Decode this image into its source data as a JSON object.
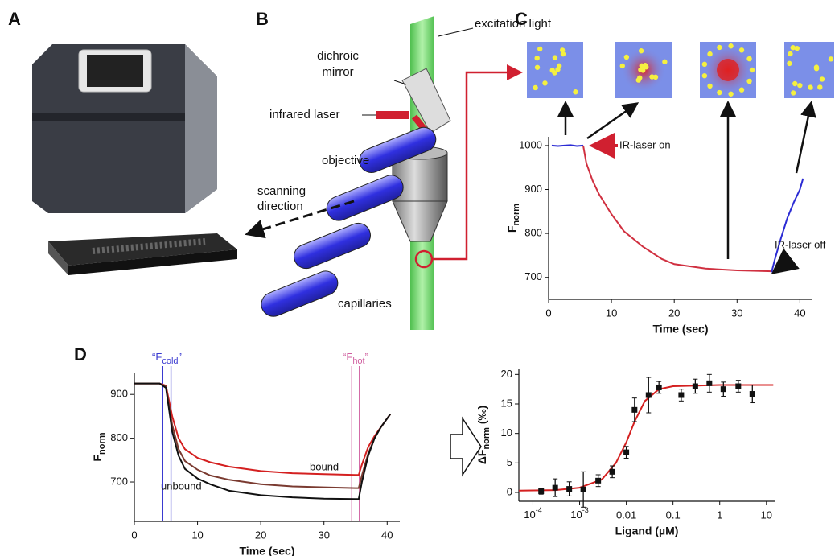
{
  "panels": [
    "A",
    "B",
    "C",
    "D"
  ],
  "diagram": {
    "excitation": "excitation light",
    "mirror": [
      "dichroic",
      "mirror"
    ],
    "laser": "infrared laser",
    "objective": "objective",
    "scanning": [
      "scanning",
      "direction"
    ],
    "capillaries": "capillaries"
  },
  "chart_data": [
    {
      "type": "line",
      "xlabel": "Time (sec)",
      "ylabel": "F",
      "ylabel_sub": "norm",
      "xlim": [
        0,
        42
      ],
      "xticks": [
        0,
        10,
        20,
        30,
        40
      ],
      "ylim": [
        650,
        1020
      ],
      "yticks": [
        700,
        800,
        900,
        1000
      ],
      "series": [
        {
          "color": "#2b2bd4",
          "x": [
            0.5,
            1.5,
            2.5,
            3.5,
            4.5,
            5.5
          ],
          "values": [
            1000,
            999,
            1000,
            1001,
            999,
            1000
          ]
        },
        {
          "color": "#d03040",
          "x": [
            5.5,
            6,
            7,
            8,
            10,
            12,
            15,
            18,
            20,
            25,
            30,
            35.5
          ],
          "values": [
            1000,
            960,
            920,
            890,
            844,
            805,
            770,
            742,
            730,
            720,
            716,
            714
          ]
        },
        {
          "color": "#2b2bd4",
          "x": [
            35.5,
            36,
            37,
            38,
            39,
            40,
            40.5
          ],
          "values": [
            712,
            740,
            790,
            835,
            870,
            900,
            925
          ]
        }
      ],
      "annotations": [
        "IR-laser on",
        "IR-laser off"
      ]
    },
    {
      "type": "line",
      "xlabel": "Time (sec)",
      "ylabel": "F",
      "ylabel_sub": "norm",
      "xlim": [
        0,
        42
      ],
      "xticks": [
        0,
        10,
        20,
        30,
        40
      ],
      "ylim": [
        610,
        950
      ],
      "yticks": [
        700,
        800,
        900
      ],
      "series": [
        {
          "name": "bound",
          "color": "#d42020",
          "x": [
            0,
            2,
            4,
            5,
            6,
            7,
            8,
            10,
            12,
            15,
            20,
            25,
            30,
            35,
            35.5,
            36,
            37,
            38,
            39,
            40,
            40.5
          ],
          "values": [
            925,
            925,
            925,
            920,
            850,
            800,
            775,
            755,
            745,
            735,
            725,
            720,
            718,
            716,
            716,
            740,
            780,
            805,
            825,
            845,
            855
          ]
        },
        {
          "color": "#7a3a30",
          "x": [
            0,
            2,
            4,
            5,
            6,
            7,
            8,
            10,
            12,
            15,
            20,
            25,
            30,
            35,
            35.5,
            36,
            37,
            38,
            39,
            40,
            40.5
          ],
          "values": [
            925,
            925,
            925,
            918,
            830,
            775,
            748,
            728,
            715,
            705,
            695,
            690,
            688,
            686,
            686,
            715,
            765,
            800,
            825,
            845,
            855
          ]
        },
        {
          "name": "unbound",
          "color": "#111111",
          "x": [
            0,
            2,
            4,
            5,
            6,
            7,
            8,
            10,
            12,
            15,
            20,
            25,
            30,
            35,
            35.5,
            36,
            37,
            38,
            39,
            40,
            40.5
          ],
          "values": [
            925,
            925,
            925,
            915,
            815,
            760,
            730,
            708,
            695,
            680,
            670,
            665,
            662,
            661,
            661,
            700,
            760,
            800,
            825,
            845,
            855
          ]
        }
      ],
      "markers": [
        {
          "label": "“F",
          "sub": "cold",
          "close": "”",
          "color": "#3a3ad0",
          "x": [
            4.5,
            5.8
          ]
        },
        {
          "label": "“F",
          "sub": "hot",
          "close": "”",
          "color": "#d060a0",
          "x": [
            34.4,
            35.6
          ]
        }
      ]
    },
    {
      "type": "scatter",
      "xscale": "log",
      "xlabel": "Ligand (µM)",
      "ylabel": "ΔF",
      "ylabel_sub": "norm",
      "ylabel_after": " (‰)",
      "xlim": [
        5e-05,
        15
      ],
      "xticks": [
        {
          "value": 0.0001,
          "label": "10",
          "exponent": "-4"
        },
        {
          "value": 0.001,
          "label": "10",
          "exponent": "-3"
        },
        0.01,
        0.1,
        1,
        10
      ],
      "ylim": [
        -1.5,
        21
      ],
      "yticks": [
        0,
        5,
        10,
        15,
        20
      ],
      "series": [
        {
          "color": "#111111",
          "x": [
            0.00015,
            0.0003,
            0.0006,
            0.0012,
            0.0025,
            0.005,
            0.01,
            0.015,
            0.03,
            0.05,
            0.15,
            0.3,
            0.6,
            1.2,
            2.5,
            5
          ],
          "values": [
            0.2,
            0.8,
            0.6,
            0.5,
            2,
            3.5,
            6.8,
            14,
            16.5,
            17.8,
            16.5,
            18,
            18.5,
            17.5,
            18,
            16.7
          ],
          "errors": [
            0.5,
            1.5,
            1.2,
            3,
            1,
            1,
            1,
            2,
            3,
            1,
            1,
            1.2,
            1.5,
            1.2,
            1,
            1.5
          ]
        }
      ],
      "fit": {
        "color": "#d42020",
        "x": [
          5e-05,
          0.0003,
          0.001,
          0.003,
          0.006,
          0.01,
          0.015,
          0.025,
          0.05,
          0.1,
          1,
          14
        ],
        "values": [
          0.3,
          0.4,
          0.8,
          2.2,
          5,
          8.5,
          12,
          15.5,
          17.5,
          18,
          18.2,
          18.2
        ]
      }
    }
  ]
}
